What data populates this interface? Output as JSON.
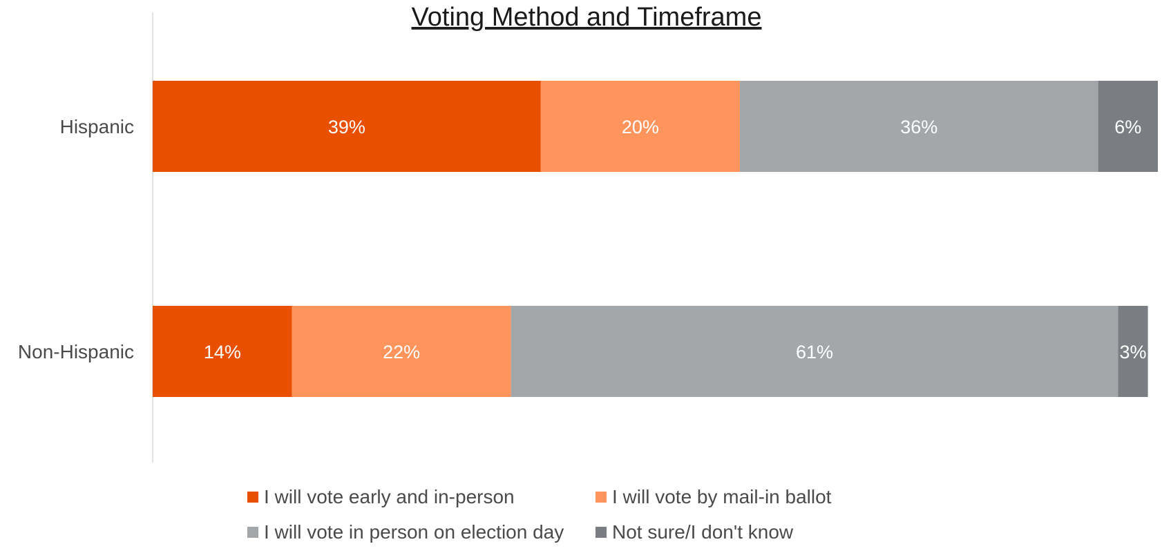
{
  "chart_data": {
    "type": "bar",
    "orientation": "horizontal",
    "stacked": true,
    "title": "Voting Method and Timeframe",
    "xlabel": "",
    "ylabel": "",
    "xlim": [
      0,
      101
    ],
    "grid": false,
    "legend_position": "bottom",
    "categories": [
      "Hispanic",
      "Non-Hispanic"
    ],
    "series": [
      {
        "name": "I will vote early and in-person",
        "color": "#e85000",
        "values": [
          39,
          14
        ],
        "labels": [
          "39%",
          "14%"
        ]
      },
      {
        "name": "I will vote by mail-in ballot",
        "color": "#ff955c",
        "values": [
          20,
          22
        ],
        "labels": [
          "20%",
          "22%"
        ]
      },
      {
        "name": "I will vote in person on election day",
        "color": "#a4a7aa",
        "values": [
          36,
          61
        ],
        "labels": [
          "36%",
          "61%"
        ]
      },
      {
        "name": "Not sure/I don't know",
        "color": "#7a7e82",
        "values": [
          6,
          3
        ],
        "labels": [
          "6%",
          "3%"
        ]
      }
    ]
  }
}
